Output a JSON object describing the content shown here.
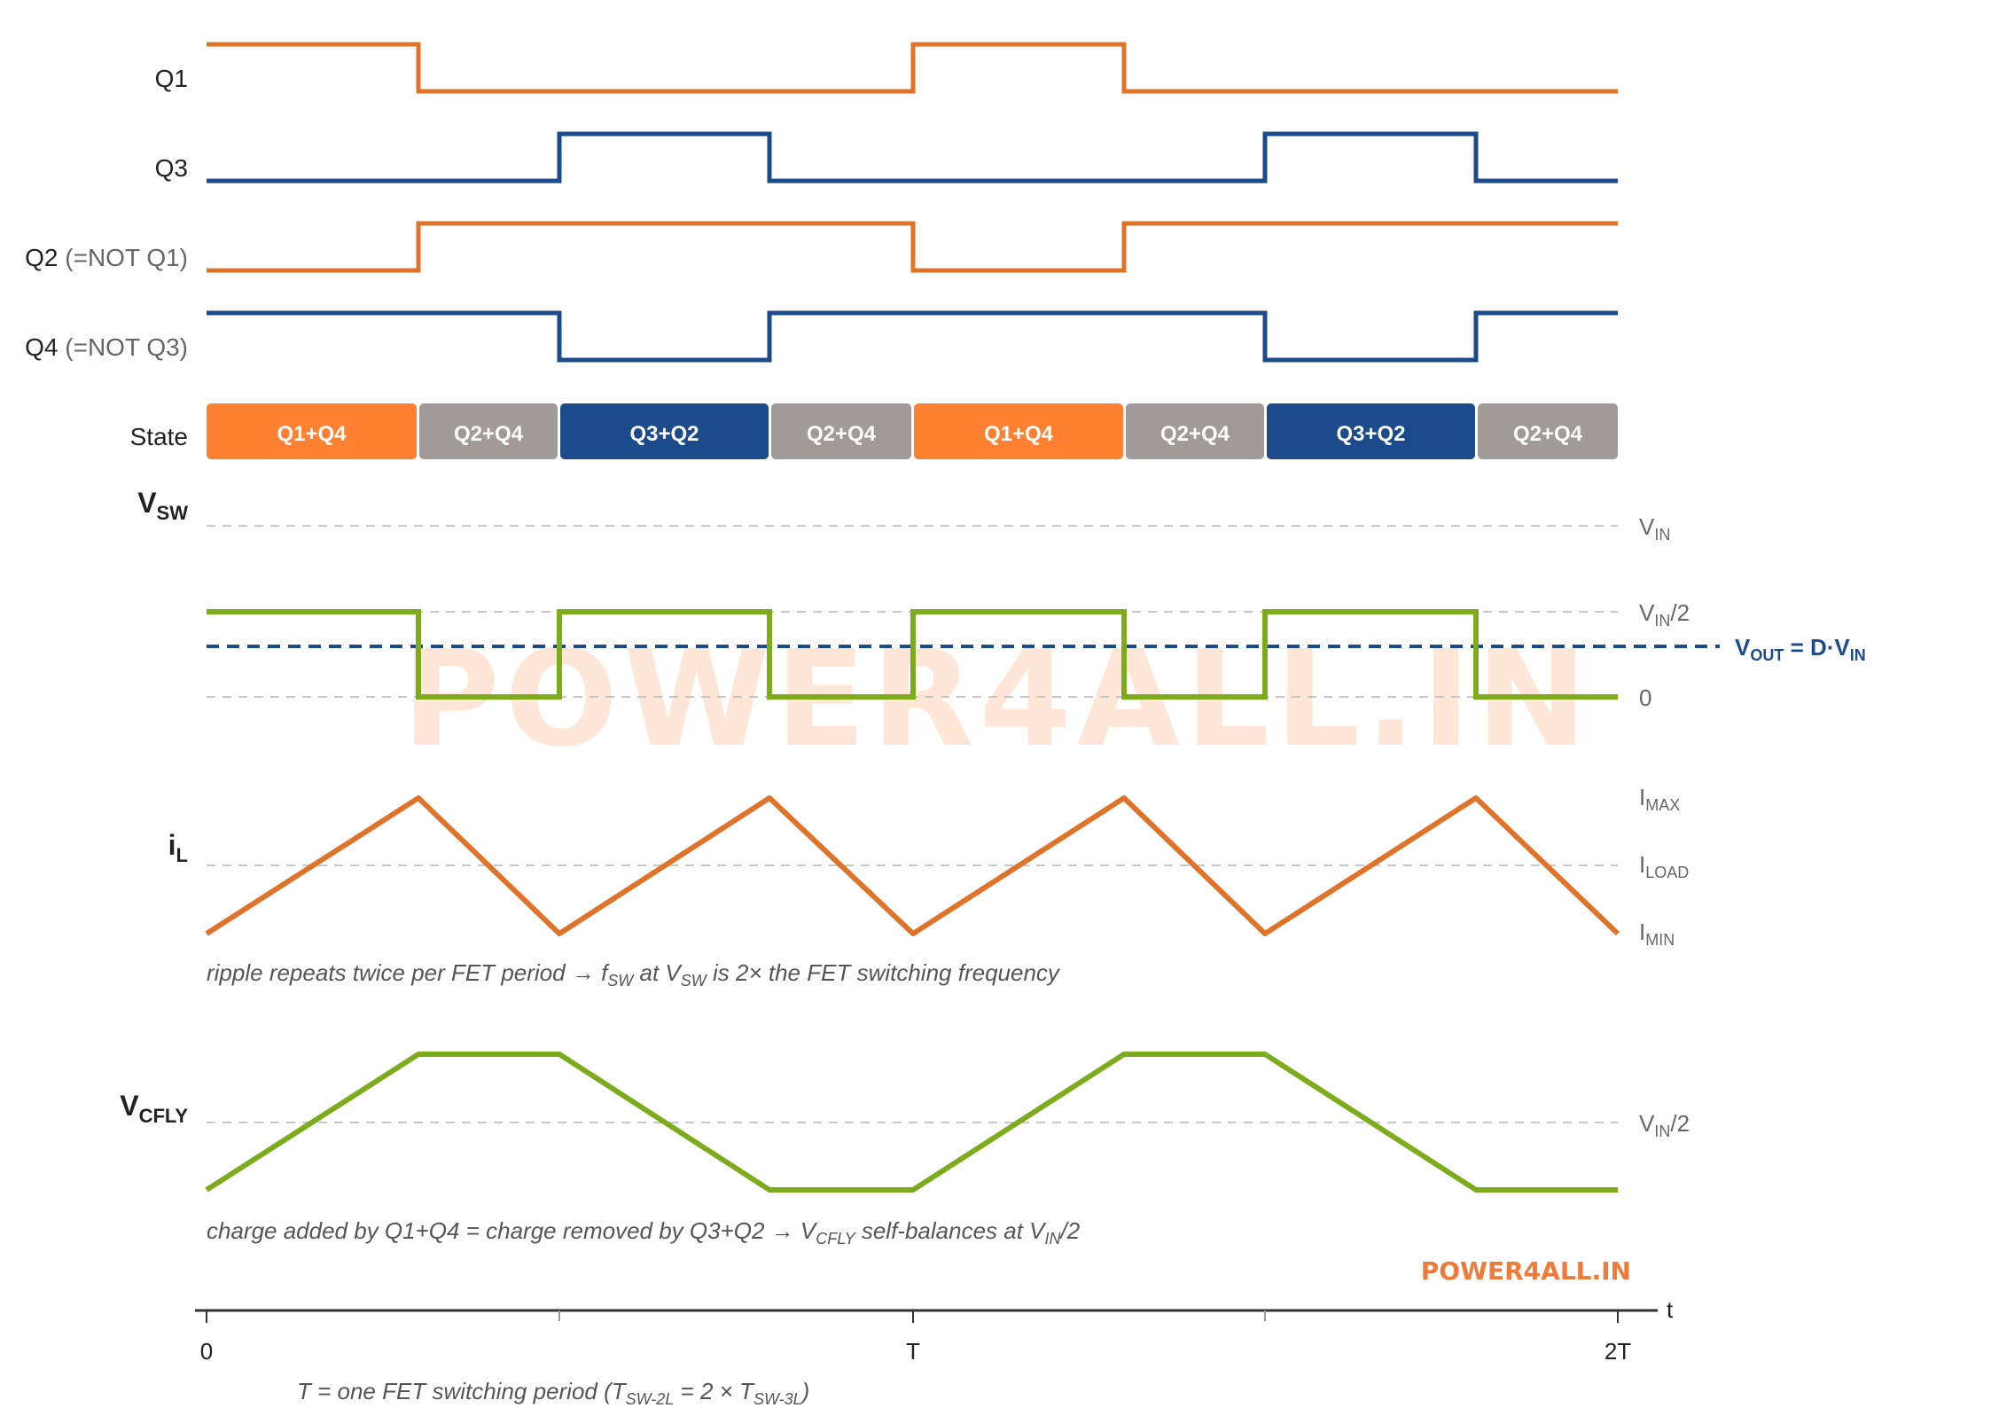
{
  "colors": {
    "orange": "#e0732a",
    "blue": "#1b4b8a",
    "green": "#7cab1c",
    "state_orange": "#ff8030",
    "state_gray": "#a09a98",
    "state_blue": "#1b4b8a",
    "dashed_grid": "#c8c8c8",
    "watermark": "#ffe4d2",
    "brand": "#f07a3a"
  },
  "signals": {
    "q1": {
      "label": "Q1"
    },
    "q3": {
      "label": "Q3"
    },
    "q2": {
      "label": "Q2",
      "suffix": " (=NOT Q1)"
    },
    "q4": {
      "label": "Q4",
      "suffix": " (=NOT Q3)"
    },
    "state": {
      "label": "State"
    }
  },
  "states": [
    {
      "label": "Q1+Q4",
      "kind": "orange"
    },
    {
      "label": "Q2+Q4",
      "kind": "gray"
    },
    {
      "label": "Q3+Q2",
      "kind": "blue"
    },
    {
      "label": "Q2+Q4",
      "kind": "gray"
    },
    {
      "label": "Q1+Q4",
      "kind": "orange"
    },
    {
      "label": "Q2+Q4",
      "kind": "gray"
    },
    {
      "label": "Q3+Q2",
      "kind": "blue"
    },
    {
      "label": "Q2+Q4",
      "kind": "gray"
    }
  ],
  "vsw": {
    "title_main": "V",
    "title_sub": "SW",
    "levels": {
      "vin": {
        "main": "V",
        "sub": "IN",
        "tail": ""
      },
      "vin2": {
        "main": "V",
        "sub": "IN",
        "tail": "/2"
      },
      "zero": {
        "main": "0",
        "sub": "",
        "tail": ""
      }
    },
    "vout": {
      "v": "V",
      "sub1": "OUT",
      "mid": " = D·V",
      "sub2": "IN"
    }
  },
  "il": {
    "title_main": "i",
    "title_sub": "L",
    "levels": {
      "max": {
        "main": "I",
        "sub": "MAX"
      },
      "load": {
        "main": "I",
        "sub": "LOAD"
      },
      "min": {
        "main": "I",
        "sub": "MIN"
      }
    },
    "note": {
      "p1": "ripple repeats twice per FET period → f",
      "s1": "SW",
      "p2": " at V",
      "s2": "SW",
      "p3": " is 2× the FET switching frequency"
    }
  },
  "vcfly": {
    "title_main": "V",
    "title_sub": "CFLY",
    "level": {
      "main": "V",
      "sub": "IN",
      "tail": "/2"
    },
    "note": {
      "p1": "charge added by Q1+Q4 = charge removed by Q3+Q2 → V",
      "s1": "CFLY",
      "p2": " self-balances at V",
      "s2": "IN",
      "p3": "/2"
    }
  },
  "watermark": "POWER4ALL.IN",
  "brand": "POWER4ALL.IN",
  "time_axis": {
    "label": "t",
    "ticks": [
      "0",
      "T",
      "2T"
    ],
    "note": {
      "p1": "T = one FET switching period (T",
      "s1": "SW-2L",
      "p2": " = 2 × T",
      "s2": "SW-3L",
      "p3": ")"
    }
  }
}
